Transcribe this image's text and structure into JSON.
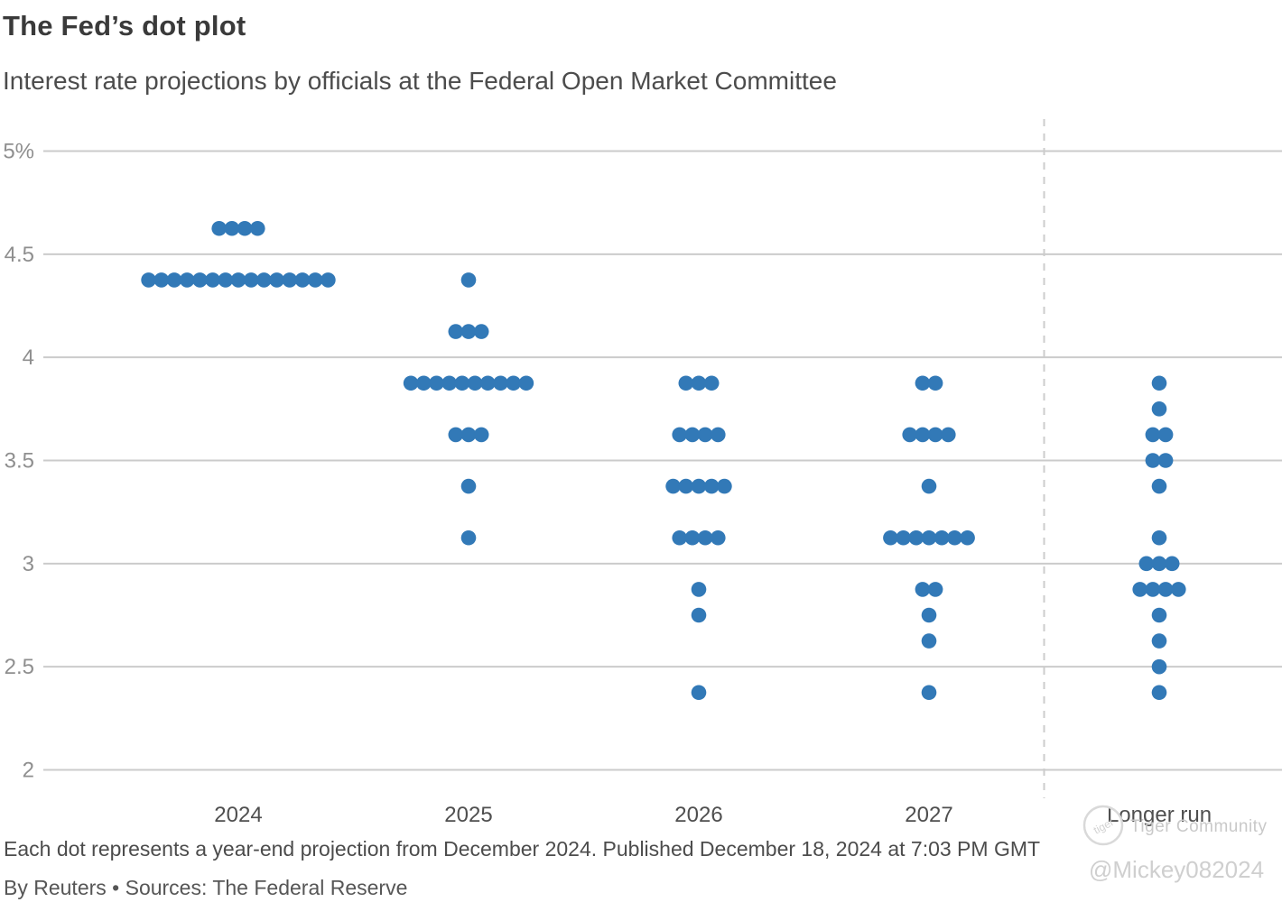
{
  "header": {
    "title": "The Fed’s dot plot",
    "subtitle": "Interest rate projections by officials at the Federal Open Market Committee"
  },
  "chart_data": {
    "type": "scatter",
    "subtype": "dot-plot",
    "title": "The Fed’s dot plot",
    "subtitle": "Interest rate projections by officials at the Federal Open Market Committee",
    "xlabel": "",
    "ylabel": "",
    "unit": "percent",
    "dot_color": "#3279b7",
    "grid": "horizontal",
    "ylim": [
      2,
      5
    ],
    "categories": [
      "2024",
      "2025",
      "2026",
      "2027",
      "Longer run"
    ],
    "y_ticks": [
      {
        "label": "5%",
        "value": 5
      },
      {
        "label": "4.5",
        "value": 4.5
      },
      {
        "label": "4",
        "value": 4
      },
      {
        "label": "3.5",
        "value": 3.5
      },
      {
        "label": "3",
        "value": 3
      },
      {
        "label": "2.5",
        "value": 2.5
      },
      {
        "label": "2",
        "value": 2
      }
    ],
    "divider": {
      "after_category": "2027",
      "style": "dashed"
    },
    "series": [
      {
        "category": "2024",
        "dots": [
          {
            "rate": 4.625,
            "count": 4
          },
          {
            "rate": 4.375,
            "count": 15
          }
        ]
      },
      {
        "category": "2025",
        "dots": [
          {
            "rate": 4.375,
            "count": 1
          },
          {
            "rate": 4.125,
            "count": 3
          },
          {
            "rate": 3.875,
            "count": 10
          },
          {
            "rate": 3.625,
            "count": 3
          },
          {
            "rate": 3.375,
            "count": 1
          },
          {
            "rate": 3.125,
            "count": 1
          }
        ]
      },
      {
        "category": "2026",
        "dots": [
          {
            "rate": 3.875,
            "count": 3
          },
          {
            "rate": 3.625,
            "count": 4
          },
          {
            "rate": 3.375,
            "count": 5
          },
          {
            "rate": 3.125,
            "count": 4
          },
          {
            "rate": 2.875,
            "count": 1
          },
          {
            "rate": 2.75,
            "count": 1
          },
          {
            "rate": 2.375,
            "count": 1
          }
        ]
      },
      {
        "category": "2027",
        "dots": [
          {
            "rate": 3.875,
            "count": 2
          },
          {
            "rate": 3.625,
            "count": 4
          },
          {
            "rate": 3.375,
            "count": 1
          },
          {
            "rate": 3.125,
            "count": 7
          },
          {
            "rate": 2.875,
            "count": 2
          },
          {
            "rate": 2.75,
            "count": 1
          },
          {
            "rate": 2.625,
            "count": 1
          },
          {
            "rate": 2.375,
            "count": 1
          }
        ]
      },
      {
        "category": "Longer run",
        "dots": [
          {
            "rate": 3.875,
            "count": 1
          },
          {
            "rate": 3.75,
            "count": 1
          },
          {
            "rate": 3.625,
            "count": 2
          },
          {
            "rate": 3.5,
            "count": 2
          },
          {
            "rate": 3.375,
            "count": 1
          },
          {
            "rate": 3.125,
            "count": 1
          },
          {
            "rate": 3.0,
            "count": 3
          },
          {
            "rate": 2.875,
            "count": 4
          },
          {
            "rate": 2.75,
            "count": 1
          },
          {
            "rate": 2.625,
            "count": 1
          },
          {
            "rate": 2.5,
            "count": 1
          },
          {
            "rate": 2.375,
            "count": 1
          }
        ]
      }
    ]
  },
  "footer": {
    "note": "Each dot represents a year-end projection from December 2024. Published December 18, 2024 at 7:03 PM GMT",
    "byline": "By Reuters • Sources: The Federal Reserve"
  },
  "watermark": {
    "name": "Tiger Community",
    "handle": "@Mickey082024",
    "logo": "tiger-community-logo"
  },
  "colors": {
    "dot": "#3279b7",
    "gridline": "#cbcbcb",
    "divider": "#cccccc",
    "y_tick_text": "#8f8f8f",
    "x_tick_text": "#4f4f4f",
    "watermark": "#cccccc"
  }
}
